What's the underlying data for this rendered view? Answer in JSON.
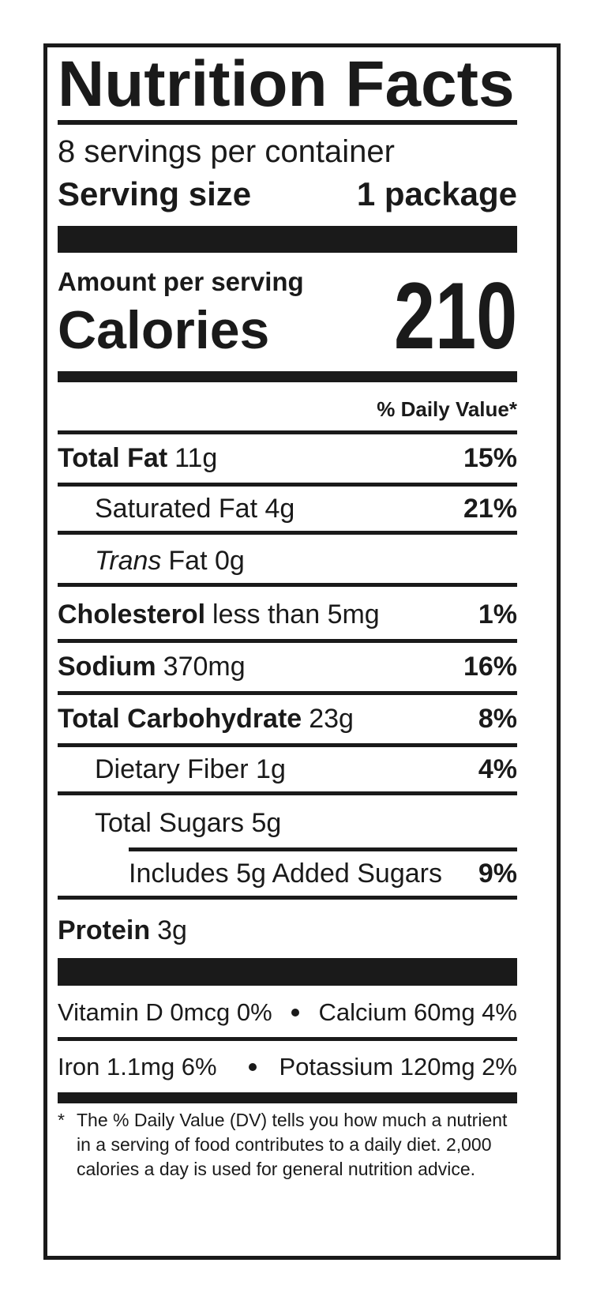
{
  "title": "Nutrition Facts",
  "servings": "8 servings per container",
  "serving_size": {
    "label": "Serving size",
    "value": "1 package"
  },
  "amount_per_serving": "Amount per serving",
  "calories": {
    "label": "Calories",
    "value": "210"
  },
  "daily_value_header": "% Daily Value*",
  "rows": [
    {
      "label": "Total Fat",
      "amount": "11g",
      "dv": "15%"
    },
    {
      "label": "Saturated Fat 4g",
      "dv": "21%"
    },
    {
      "label": "Trans",
      "amount": "Fat 0g"
    },
    {
      "label": "Cholesterol",
      "amount": "less than 5mg",
      "dv": "1%"
    },
    {
      "label": "Sodium",
      "amount": "370mg",
      "dv": "16%"
    },
    {
      "label": "Total Carbohydrate",
      "amount": "23g",
      "dv": "8%"
    },
    {
      "label": "Dietary Fiber 1g",
      "dv": "4%"
    },
    {
      "label": "Total Sugars 5g"
    },
    {
      "label": "Includes 5g Added Sugars",
      "dv": "9%"
    },
    {
      "label": "Protein",
      "amount": "3g"
    }
  ],
  "micronutrients": [
    [
      "Vitamin D 0mcg 0%",
      "Calcium 60mg 4%"
    ],
    [
      "Iron 1.1mg 6%",
      "Potassium 120mg 2%"
    ]
  ],
  "footnote": {
    "marker": "*",
    "text": "The % Daily Value (DV) tells you how much a nutrient in a serving of food contributes to a daily diet. 2,000 calories a day is used for general nutrition advice."
  }
}
